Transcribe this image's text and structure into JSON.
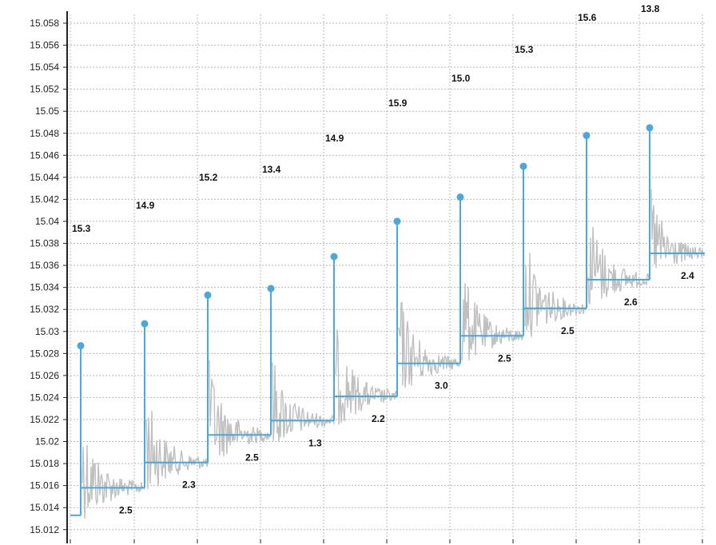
{
  "chart_data": {
    "type": "line",
    "ylim": [
      15.011,
      15.06
    ],
    "yticks": [
      "15.012",
      "15.014",
      "15.016",
      "15.018",
      "15.02",
      "15.022",
      "15.024",
      "15.026",
      "15.028",
      "15.03",
      "15.032",
      "15.034",
      "15.036",
      "15.038",
      "15.04",
      "15.042",
      "15.044",
      "15.046",
      "15.048",
      "15.05",
      "15.052",
      "15.054",
      "15.056",
      "15.058"
    ],
    "grid": true,
    "colors": {
      "step": "#4aa8da",
      "noise": "#c0c0c0",
      "grid": "#b8b8b8"
    },
    "steps": [
      {
        "peak": 15.0287,
        "level_before": 15.0133,
        "level_after": 15.0158,
        "peak_label": "15.3",
        "delta_label": "2.5"
      },
      {
        "peak": 15.0307,
        "level_before": 15.0158,
        "level_after": 15.0181,
        "peak_label": "14.9",
        "delta_label": "2.3"
      },
      {
        "peak": 15.0333,
        "level_before": 15.0181,
        "level_after": 15.0206,
        "peak_label": "15.2",
        "delta_label": "2.5"
      },
      {
        "peak": 15.0339,
        "level_before": 15.0206,
        "level_after": 15.0219,
        "peak_label": "13.4",
        "delta_label": "1.3"
      },
      {
        "peak": 15.0368,
        "level_before": 15.0219,
        "level_after": 15.0241,
        "peak_label": "14.9",
        "delta_label": "2.2"
      },
      {
        "peak": 15.04,
        "level_before": 15.0241,
        "level_after": 15.0271,
        "peak_label": "15.9",
        "delta_label": "3.0"
      },
      {
        "peak": 15.0422,
        "level_before": 15.0271,
        "level_after": 15.0296,
        "peak_label": "15.0",
        "delta_label": "2.5"
      },
      {
        "peak": 15.045,
        "level_before": 15.0296,
        "level_after": 15.0321,
        "peak_label": "15.3",
        "delta_label": "2.5"
      },
      {
        "peak": 15.0478,
        "level_before": 15.0321,
        "level_after": 15.0347,
        "peak_label": "15.6",
        "delta_label": "2.6"
      },
      {
        "peak": 15.0485,
        "level_before": 15.0347,
        "level_after": 15.0371,
        "peak_label": "13.8",
        "delta_label": "2.4"
      }
    ]
  }
}
